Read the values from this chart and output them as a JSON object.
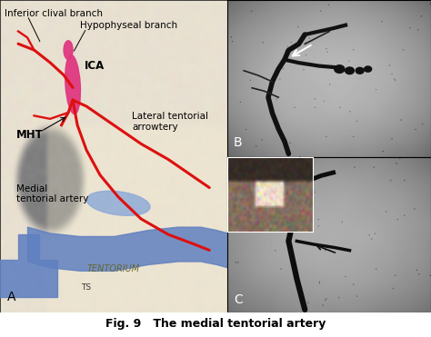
{
  "figure_caption": "Fig. 9   The medial tentorial artery",
  "caption_fontsize": 9,
  "fig_width": 4.74,
  "fig_height": 3.71,
  "dpi": 100,
  "background_color": "#ffffff",
  "panel_A": {
    "label": "A",
    "skull_color": "#e8e0d0",
    "skull_dark": "#b8b0a0",
    "inner_color": "#f0e8c8",
    "hole_color": "#808080",
    "blue_color": "#6080c0",
    "pink_color": "#e03880",
    "red_color": "#dd1010",
    "label_color": "#000000"
  },
  "panel_B": {
    "label": "B",
    "bg_light": "#c8c8c8",
    "bg_dark": "#404040",
    "vessel_color": "#1a1a1a",
    "label_color": "#ffffff"
  },
  "panel_C": {
    "label": "C",
    "bg_light": "#c0c0c0",
    "bg_dark": "#383838",
    "vessel_color": "#151515",
    "label_color": "#ffffff",
    "inset_bg": "#604030"
  }
}
